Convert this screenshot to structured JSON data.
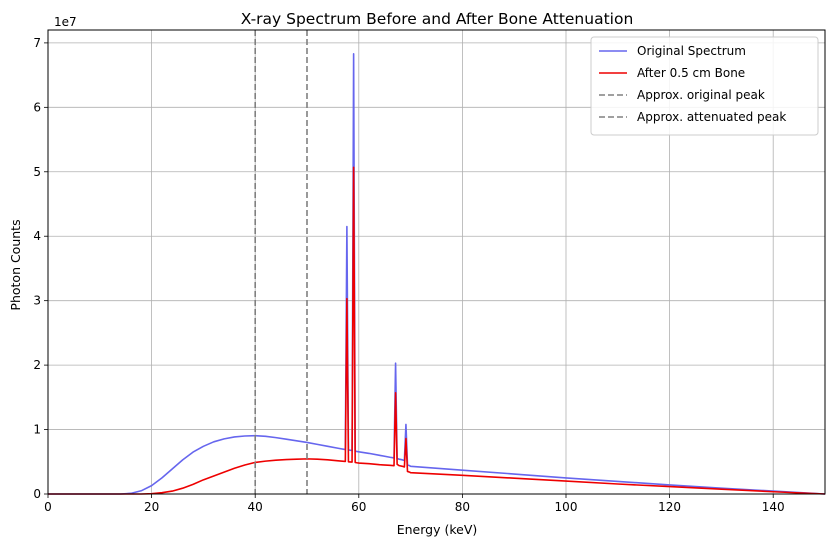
{
  "chart_data": {
    "type": "line",
    "title": "X-ray Spectrum Before and After Bone Attenuation",
    "xlabel": "Energy (keV)",
    "ylabel": "Photon Counts",
    "y_multiplier_label": "1e7",
    "xlim": [
      0,
      150
    ],
    "ylim": [
      0,
      72000000.0
    ],
    "x_ticks": [
      0,
      20,
      40,
      60,
      80,
      100,
      120,
      140
    ],
    "y_ticks": [
      0,
      10000000.0,
      20000000.0,
      30000000.0,
      40000000.0,
      50000000.0,
      60000000.0,
      70000000.0
    ],
    "y_tick_labels": [
      "0",
      "1",
      "2",
      "3",
      "4",
      "5",
      "6",
      "7"
    ],
    "grid": true,
    "legend_position": "top-right",
    "series": [
      {
        "name": "Original Spectrum",
        "color": "#6666ee",
        "style": "solid",
        "x": [
          0,
          14,
          16,
          18,
          20,
          22,
          24,
          26,
          28,
          30,
          32,
          34,
          36,
          38,
          40,
          42,
          44,
          46,
          48,
          50,
          52,
          54,
          56,
          57.4,
          57.7,
          58.0,
          58.3,
          58.7,
          59.0,
          59.3,
          59.6,
          60.0,
          62,
          64,
          66,
          66.8,
          67.1,
          67.4,
          67.8,
          68.4,
          68.8,
          69.1,
          69.4,
          69.8,
          70,
          80,
          90,
          100,
          110,
          120,
          130,
          140,
          150
        ],
        "y": [
          0,
          0,
          100000,
          500000,
          1300000,
          2500000,
          3900000,
          5300000,
          6500000,
          7400000,
          8100000,
          8550000,
          8850000,
          9000000,
          9050000,
          8950000,
          8750000,
          8500000,
          8250000,
          8000000,
          7700000,
          7400000,
          7100000,
          6900000,
          41500000,
          6850000,
          6800000,
          6750000,
          68300000,
          6650000,
          6600000,
          6550000,
          6300000,
          6000000,
          5700000,
          5600000,
          20300000,
          5500000,
          5400000,
          5300000,
          5200000,
          10800000,
          4500000,
          4400000,
          4300000,
          3700000,
          3100000,
          2500000,
          1950000,
          1400000,
          900000,
          450000,
          0
        ]
      },
      {
        "name": "After 0.5 cm Bone",
        "color": "#ee0000",
        "style": "solid",
        "x": [
          0,
          18,
          20,
          22,
          24,
          26,
          28,
          30,
          32,
          34,
          36,
          38,
          40,
          42,
          44,
          46,
          48,
          50,
          52,
          54,
          56,
          57.4,
          57.7,
          58.0,
          58.3,
          58.7,
          59.0,
          59.3,
          59.6,
          60.0,
          62,
          64,
          66,
          66.8,
          67.1,
          67.4,
          67.8,
          68.4,
          68.8,
          69.1,
          69.4,
          69.8,
          70,
          80,
          90,
          100,
          110,
          120,
          130,
          140,
          150
        ],
        "y": [
          0,
          0,
          50000,
          200000,
          450000,
          900000,
          1500000,
          2200000,
          2800000,
          3400000,
          4000000,
          4500000,
          4900000,
          5100000,
          5250000,
          5350000,
          5400000,
          5450000,
          5400000,
          5300000,
          5150000,
          5050000,
          30300000,
          5000000,
          4980000,
          4950000,
          50700000,
          4900000,
          4850000,
          4800000,
          4700000,
          4550000,
          4450000,
          4400000,
          15700000,
          4600000,
          4400000,
          4300000,
          4200000,
          8600000,
          3500000,
          3400000,
          3300000,
          2900000,
          2450000,
          2000000,
          1550000,
          1150000,
          750000,
          350000,
          0
        ]
      },
      {
        "name": "Approx. original peak",
        "color": "#808080",
        "style": "dashed",
        "x_value": 40
      },
      {
        "name": "Approx. attenuated peak",
        "color": "#808080",
        "style": "dashed",
        "x_value": 50
      }
    ]
  }
}
